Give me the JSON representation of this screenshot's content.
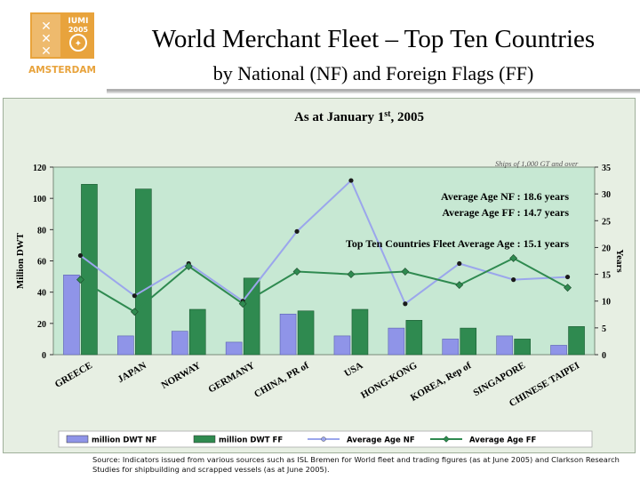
{
  "logo": {
    "text_top": "IUMI",
    "text_year": "2005",
    "text_city": "AMSTERDAM"
  },
  "header": {
    "title": "World Merchant Fleet – Top Ten Countries",
    "subtitle": "by National (NF) and Foreign Flags (FF)"
  },
  "chart_data": {
    "type": "bar",
    "title": "As at January 1st, 2005",
    "title_main": "As at January 1",
    "title_sup": "st",
    "title_rest": ", 2005",
    "note": "Ships of 1,000 GT and over",
    "ylabel": "Million DWT",
    "y2label": "Years",
    "ylim": [
      0,
      120
    ],
    "y_ticks": [
      0,
      20,
      40,
      60,
      80,
      100,
      120
    ],
    "y2lim": [
      0,
      35
    ],
    "y2_ticks": [
      0,
      5,
      10,
      15,
      20,
      25,
      30,
      35
    ],
    "categories": [
      "GREECE",
      "JAPAN",
      "NORWAY",
      "GERMANY",
      "CHINA, PR of",
      "USA",
      "HONG-KONG",
      "KOREA, Rep of",
      "SINGAPORE",
      "CHINESE TAIPEI"
    ],
    "series": [
      {
        "name": "million DWT NF",
        "type": "bar",
        "axis": "left",
        "color": "#8f94e8",
        "values": [
          51,
          12,
          15,
          8,
          26,
          12,
          17,
          10,
          12,
          6
        ]
      },
      {
        "name": "million DWT FF",
        "type": "bar",
        "axis": "left",
        "color": "#2f8a50",
        "values": [
          109,
          106,
          29,
          49,
          28,
          29,
          22,
          17,
          10,
          18
        ]
      },
      {
        "name": "Average Age NF",
        "type": "line",
        "axis": "right",
        "color": "#9ba6ec",
        "values": [
          18.5,
          11,
          17,
          10,
          23,
          32.5,
          9.5,
          17,
          14,
          14.5
        ]
      },
      {
        "name": "Average Age FF",
        "type": "line",
        "axis": "right",
        "color": "#2f8a50",
        "values": [
          14,
          8,
          16.5,
          9.5,
          15.5,
          15,
          15.5,
          13,
          18,
          12.5
        ]
      }
    ],
    "annotations": [
      "Average Age NF : 18.6 years",
      "Average Age FF : 14.7 years",
      "Top Ten Countries Fleet Average Age : 15.1 years"
    ],
    "grid": false,
    "legend": "bottom"
  },
  "source": "Source: Indicators issued from various sources such as ISL Bremen for World fleet and trading figures (as at June 2005) and Clarkson Research Studies for shipbuilding and scrapped vessels (as at June 2005).",
  "colors": {
    "plot_bg": "#c7e8d3",
    "frame_bg": "#e7efe3",
    "logo_orange": "#e8a33c",
    "rule": "#b0b0b0"
  }
}
